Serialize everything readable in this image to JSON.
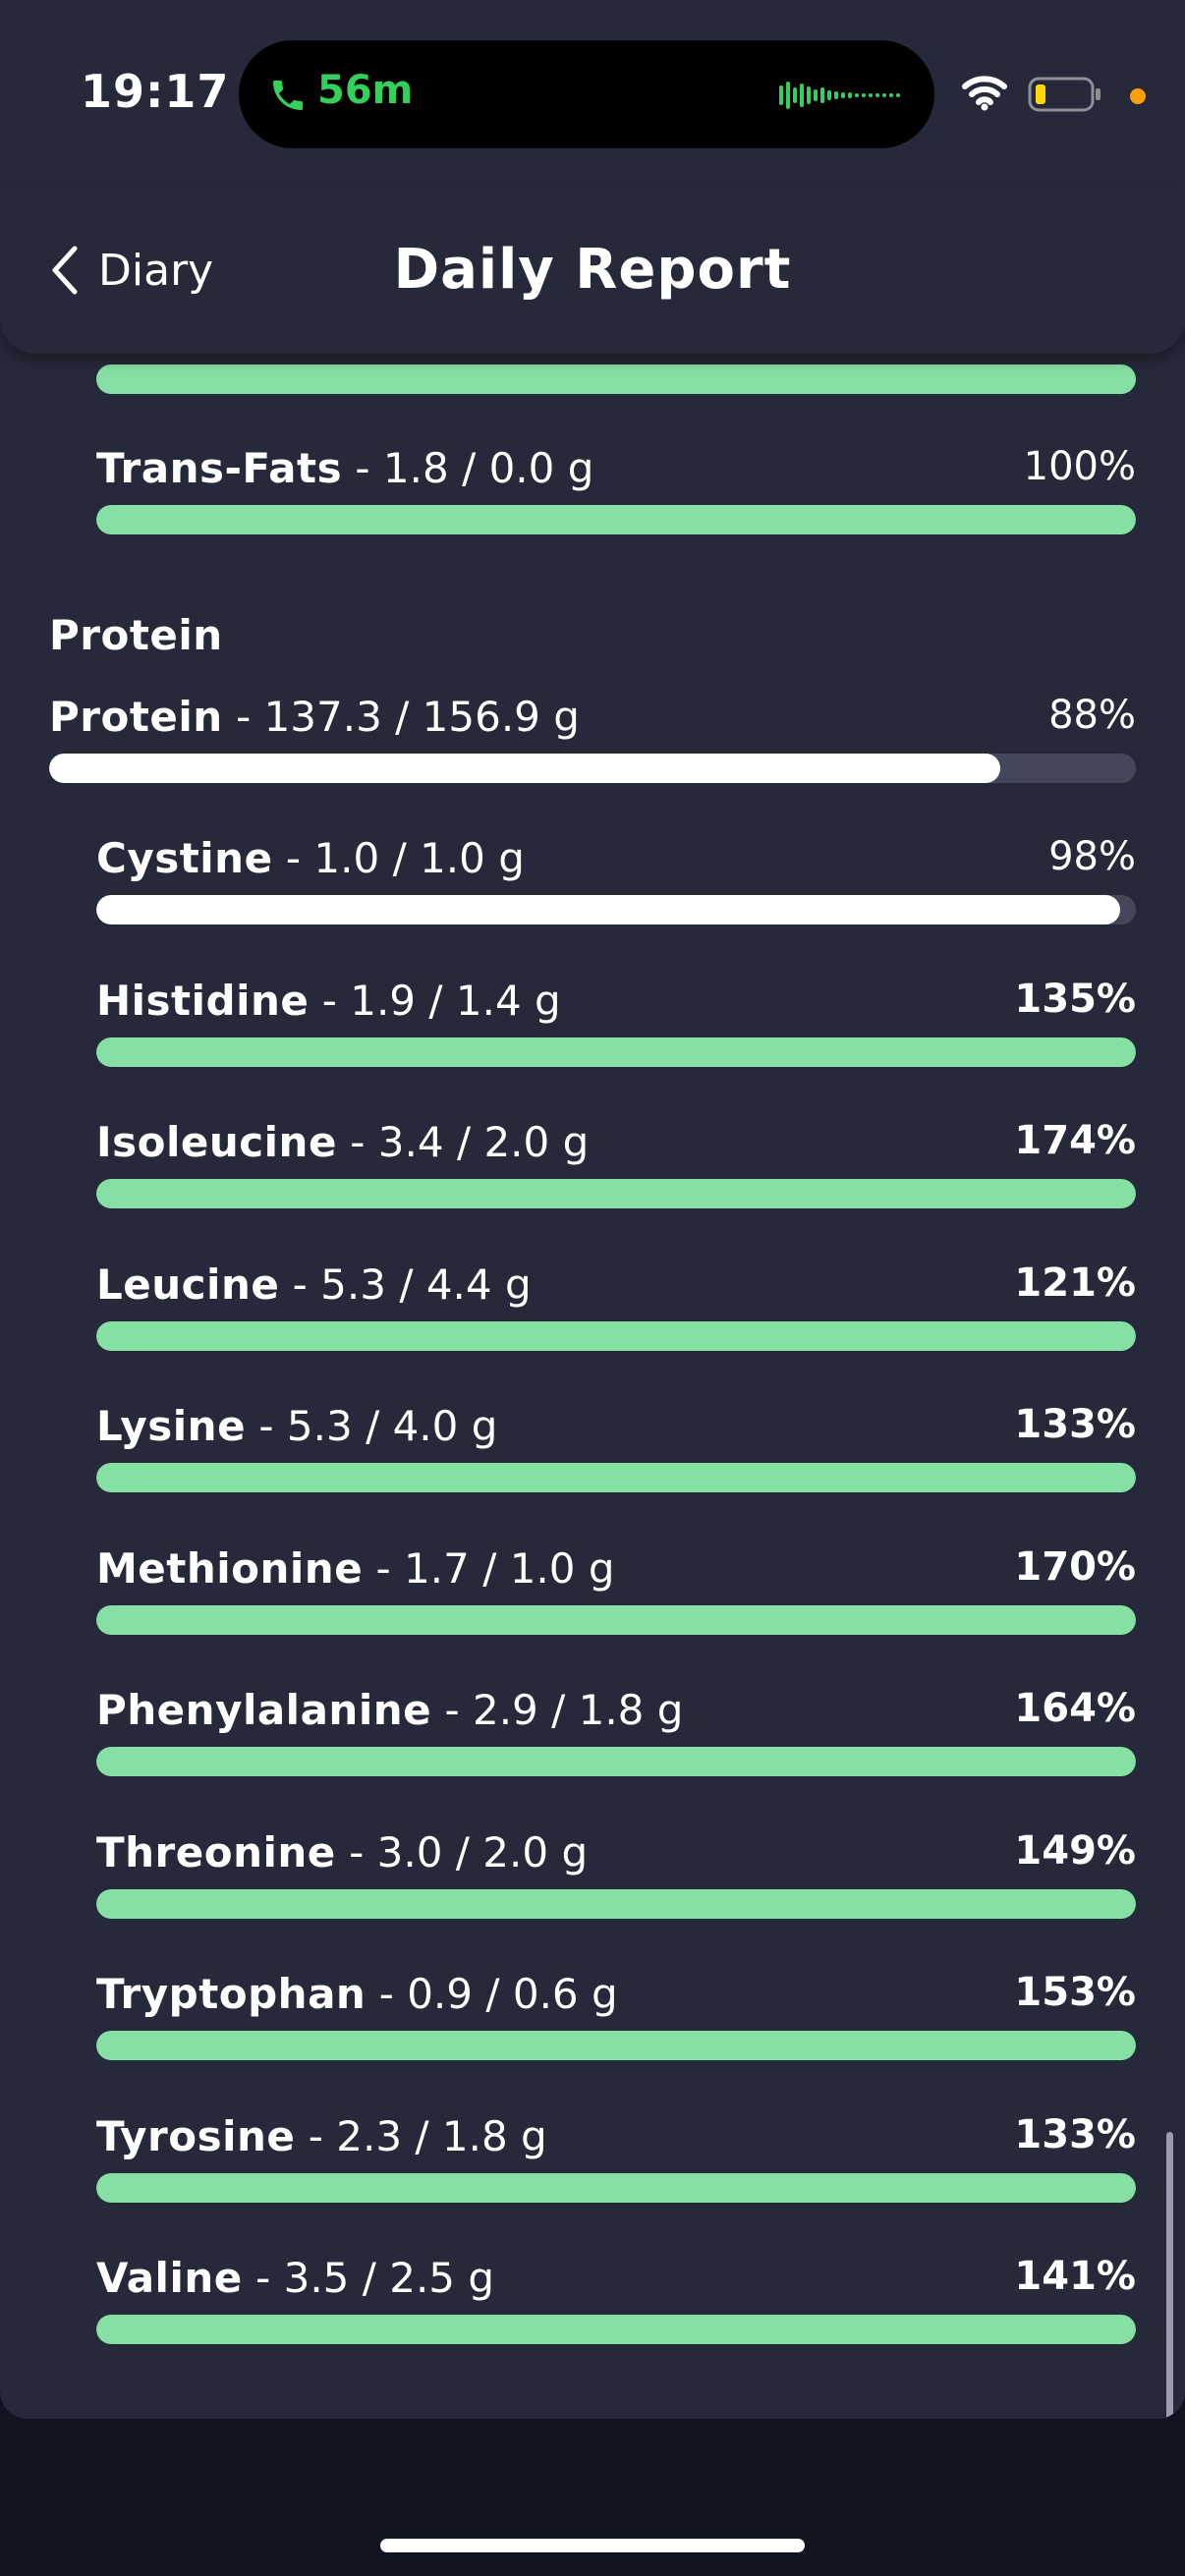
{
  "status_bar": {
    "time": "19:17",
    "call_duration": "56m"
  },
  "nav": {
    "back_label": "Diary",
    "title": "Daily Report"
  },
  "colors": {
    "exceeded_fill": "#86dfa3",
    "under_fill": "#ffffff",
    "track": "#44475a",
    "card_bg": "#262939",
    "page_bg": "#121321"
  },
  "fats_partial": {
    "progress": 1.0
  },
  "trans_fats": {
    "name": "Trans-Fats",
    "amount": " - 1.8 / 0.0 g",
    "percent": "100%",
    "progress": 1.0
  },
  "protein_section": {
    "title": "Protein",
    "total": {
      "name": "Protein",
      "amount": " - 137.3 / 156.9 g",
      "percent": "88%",
      "progress": 0.875
    },
    "items": [
      {
        "name": "Cystine",
        "amount": " - 1.0 / 1.0 g",
        "percent": "98%",
        "progress": 0.985
      },
      {
        "name": "Histidine",
        "amount": " - 1.9 / 1.4 g",
        "percent": "135%",
        "progress": 1.0
      },
      {
        "name": "Isoleucine",
        "amount": " - 3.4 / 2.0 g",
        "percent": "174%",
        "progress": 1.0
      },
      {
        "name": "Leucine",
        "amount": " - 5.3 / 4.4 g",
        "percent": "121%",
        "progress": 1.0
      },
      {
        "name": "Lysine",
        "amount": " - 5.3 / 4.0 g",
        "percent": "133%",
        "progress": 1.0
      },
      {
        "name": "Methionine",
        "amount": " - 1.7 / 1.0 g",
        "percent": "170%",
        "progress": 1.0
      },
      {
        "name": "Phenylalanine",
        "amount": " - 2.9 / 1.8 g",
        "percent": "164%",
        "progress": 1.0
      },
      {
        "name": "Threonine",
        "amount": " - 3.0 / 2.0 g",
        "percent": "149%",
        "progress": 1.0
      },
      {
        "name": "Tryptophan",
        "amount": " - 0.9 / 0.6 g",
        "percent": "153%",
        "progress": 1.0
      },
      {
        "name": "Tyrosine",
        "amount": " - 2.3 / 1.8 g",
        "percent": "133%",
        "progress": 1.0
      },
      {
        "name": "Valine",
        "amount": " - 3.5 / 2.5 g",
        "percent": "141%",
        "progress": 1.0
      }
    ]
  }
}
